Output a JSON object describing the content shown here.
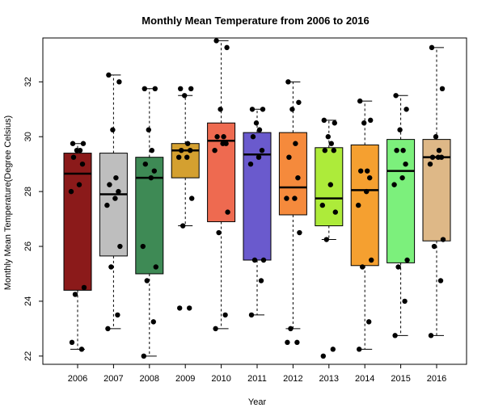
{
  "chart_data": {
    "type": "box",
    "title": "Monthly Mean Temperature from 2006 to 2016",
    "xlabel": "Year",
    "ylabel": "Monthly Mean Temperature(Degree Celsius)",
    "ylim": [
      21.7,
      33.6
    ],
    "yticks": [
      22,
      24,
      26,
      28,
      30,
      32
    ],
    "grid": false,
    "legend": "none",
    "categories": [
      "2006",
      "2007",
      "2008",
      "2009",
      "2010",
      "2011",
      "2012",
      "2013",
      "2014",
      "2015",
      "2016"
    ],
    "boxes": [
      {
        "year": "2006",
        "color": "#8B1A1A",
        "min": 22.25,
        "q1": 24.4,
        "median": 28.65,
        "q3": 29.4,
        "max": 29.75
      },
      {
        "year": "2007",
        "color": "#BEBEBE",
        "min": 23.0,
        "q1": 25.65,
        "median": 27.9,
        "q3": 29.4,
        "max": 32.25
      },
      {
        "year": "2008",
        "color": "#3E8A55",
        "min": 22.0,
        "q1": 25.0,
        "median": 28.5,
        "q3": 29.25,
        "max": 31.75
      },
      {
        "year": "2009",
        "color": "#D4A030",
        "min": 26.75,
        "q1": 28.5,
        "median": 29.5,
        "q3": 29.75,
        "max": 31.5
      },
      {
        "year": "2010",
        "color": "#EE6A50",
        "min": 23.0,
        "q1": 26.9,
        "median": 29.85,
        "q3": 30.5,
        "max": 33.5
      },
      {
        "year": "2011",
        "color": "#6A5ACD",
        "min": 23.5,
        "q1": 25.5,
        "median": 29.35,
        "q3": 30.15,
        "max": 31.0
      },
      {
        "year": "2012",
        "color": "#F58A3C",
        "min": 23.0,
        "q1": 27.15,
        "median": 28.15,
        "q3": 30.15,
        "max": 32.0
      },
      {
        "year": "2013",
        "color": "#ADEB3A",
        "min": 26.25,
        "q1": 26.75,
        "median": 27.75,
        "q3": 29.6,
        "max": 30.6
      },
      {
        "year": "2014",
        "color": "#F5A030",
        "min": 22.25,
        "q1": 25.3,
        "median": 28.05,
        "q3": 29.7,
        "max": 31.3
      },
      {
        "year": "2015",
        "color": "#7CF07C",
        "min": 22.75,
        "q1": 25.4,
        "median": 28.75,
        "q3": 29.9,
        "max": 31.5
      },
      {
        "year": "2016",
        "color": "#DEB887",
        "min": 22.75,
        "q1": 26.2,
        "median": 29.25,
        "q3": 29.9,
        "max": 33.25
      }
    ],
    "points": [
      {
        "year": "2006",
        "values": [
          22.5,
          22.25,
          24.25,
          24.5,
          28.0,
          28.25,
          29.0,
          29.25,
          29.5,
          29.5,
          29.75,
          29.75
        ]
      },
      {
        "year": "2007",
        "values": [
          23.0,
          23.5,
          25.25,
          26.0,
          27.5,
          27.75,
          28.0,
          28.25,
          28.5,
          30.25,
          32.0,
          32.25
        ]
      },
      {
        "year": "2008",
        "values": [
          22.0,
          23.25,
          24.75,
          25.25,
          26.0,
          28.5,
          28.75,
          29.0,
          29.5,
          30.25,
          31.75,
          31.75
        ]
      },
      {
        "year": "2009",
        "values": [
          23.75,
          23.75,
          26.75,
          27.75,
          29.25,
          29.25,
          29.5,
          29.5,
          29.75,
          31.5,
          31.75,
          31.75
        ]
      },
      {
        "year": "2010",
        "values": [
          23.0,
          23.5,
          26.5,
          27.25,
          29.5,
          29.75,
          29.75,
          30.0,
          30.0,
          31.0,
          33.25,
          33.5
        ]
      },
      {
        "year": "2011",
        "values": [
          23.5,
          24.75,
          25.5,
          25.5,
          29.0,
          29.25,
          29.5,
          30.0,
          30.25,
          30.5,
          31.0,
          31.0
        ]
      },
      {
        "year": "2012",
        "values": [
          22.5,
          22.5,
          23.0,
          26.5,
          27.75,
          27.75,
          28.5,
          29.25,
          29.75,
          31.0,
          31.25,
          32.0
        ]
      },
      {
        "year": "2013",
        "values": [
          22.0,
          22.25,
          26.25,
          27.25,
          27.5,
          28.25,
          29.5,
          29.5,
          29.75,
          30.0,
          30.5,
          30.6
        ]
      },
      {
        "year": "2014",
        "values": [
          22.25,
          23.25,
          25.25,
          25.5,
          27.5,
          28.0,
          28.5,
          28.75,
          28.75,
          30.5,
          30.6,
          31.3
        ]
      },
      {
        "year": "2015",
        "values": [
          22.75,
          24.0,
          25.25,
          25.5,
          28.25,
          28.5,
          29.0,
          29.5,
          29.5,
          30.25,
          31.0,
          31.5
        ]
      },
      {
        "year": "2016",
        "values": [
          22.75,
          24.75,
          26.0,
          26.25,
          29.0,
          29.25,
          29.25,
          29.25,
          29.5,
          30.0,
          31.75,
          33.25
        ]
      }
    ]
  }
}
